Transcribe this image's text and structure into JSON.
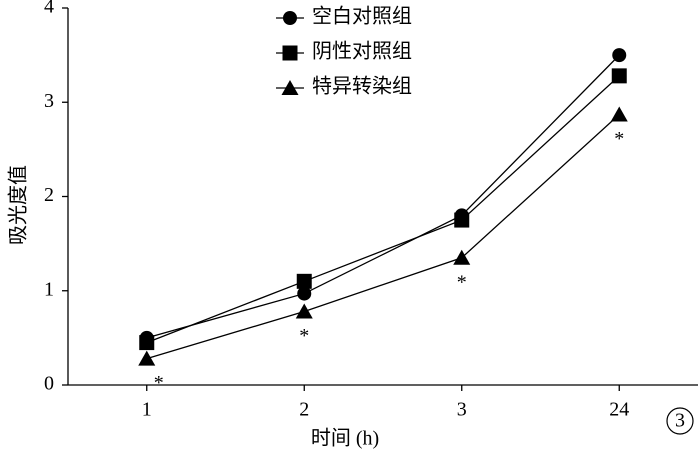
{
  "chart_data": {
    "type": "line",
    "y_label": "吸光度值",
    "x_label": "时间 (h)",
    "panel_label": "3",
    "categories": [
      "1",
      "2",
      "3",
      "24"
    ],
    "series": [
      {
        "name": "空白对照组",
        "color": "#000000",
        "marker": "circle",
        "values": [
          0.5,
          0.97,
          1.8,
          3.5
        ]
      },
      {
        "name": "阴性对照组",
        "color": "#000000",
        "marker": "square",
        "values": [
          0.45,
          1.1,
          1.75,
          3.28
        ]
      },
      {
        "name": "特异转染组",
        "color": "#000000",
        "marker": "triangle",
        "values": [
          0.28,
          0.78,
          1.35,
          2.87
        ],
        "significance": [
          "*",
          "*",
          "*",
          "*"
        ]
      }
    ],
    "ylim": [
      0,
      4
    ],
    "yticks": [
      0,
      1,
      2,
      3,
      4
    ],
    "legend": "top",
    "grid": false
  }
}
